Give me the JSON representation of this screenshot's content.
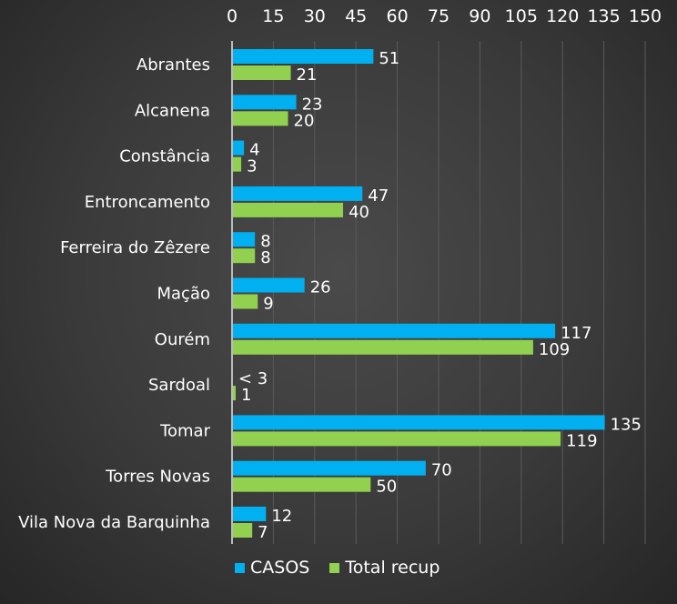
{
  "chart_data": {
    "type": "bar",
    "orientation": "horizontal",
    "categories": [
      "Abrantes",
      "Alcanena",
      "Constância",
      "Entroncamento",
      "Ferreira do Zêzere",
      "Mação",
      "Ourém",
      "Sardoal",
      "Tomar",
      "Torres Novas",
      "Vila Nova da Barquinha"
    ],
    "series": [
      {
        "name": "CASOS",
        "color": "#00b0f0",
        "values": [
          51,
          23,
          4,
          47,
          8,
          26,
          117,
          0,
          135,
          70,
          12
        ],
        "labels": [
          "51",
          "23",
          "4",
          "47",
          "8",
          "26",
          "117",
          "< 3",
          "135",
          "70",
          "12"
        ]
      },
      {
        "name": "Total recup",
        "color": "#92d050",
        "values": [
          21,
          20,
          3,
          40,
          8,
          9,
          109,
          1,
          119,
          50,
          7
        ],
        "labels": [
          "21",
          "20",
          "3",
          "40",
          "8",
          "9",
          "109",
          "1",
          "119",
          "50",
          "7"
        ]
      }
    ],
    "xlim": [
      0,
      150
    ],
    "xticks": [
      "0",
      "15",
      "30",
      "45",
      "60",
      "75",
      "90",
      "105",
      "120",
      "135",
      "150"
    ],
    "grid": true,
    "legend": "bottom"
  }
}
